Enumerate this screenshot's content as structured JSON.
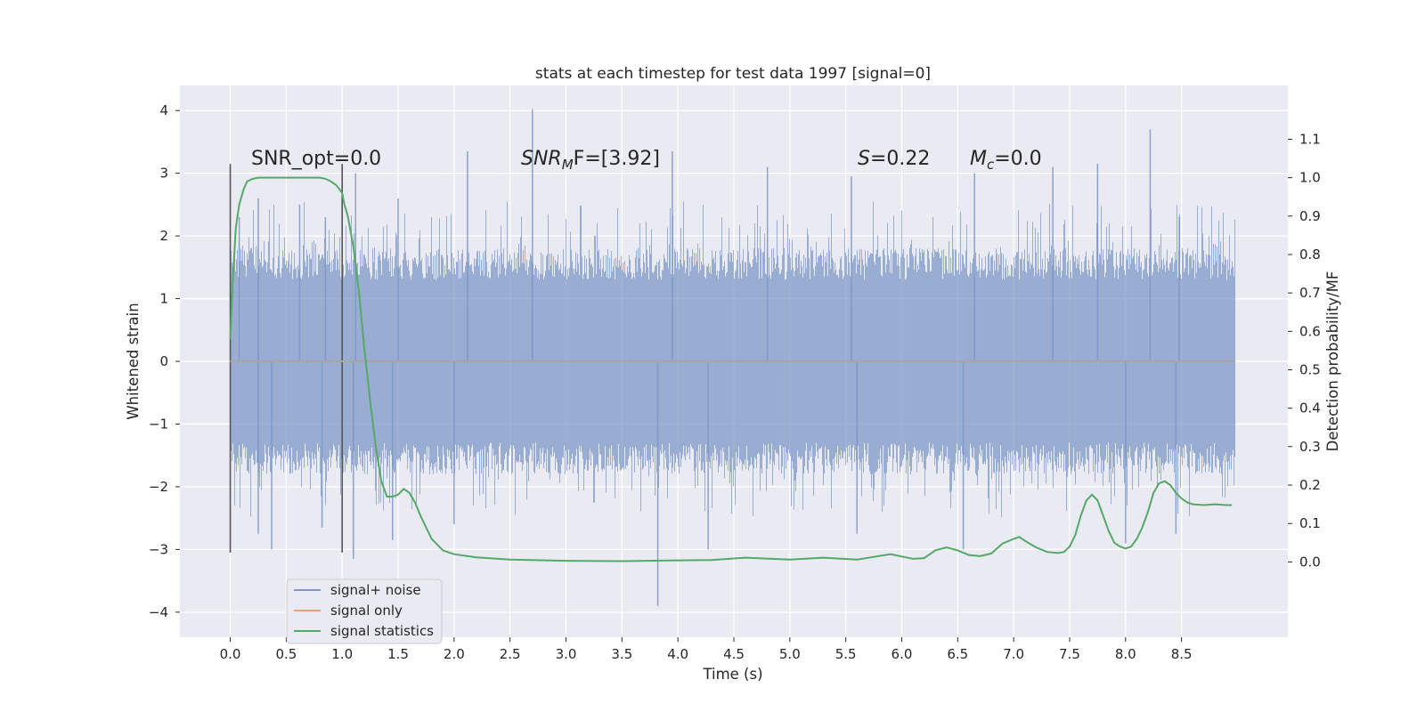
{
  "chart_data": {
    "type": "line",
    "title": "stats at each timestep for test data 1997 [signal=0]",
    "xlabel": "Time (s)",
    "ylabel_left": "Whitened strain",
    "ylabel_right": "Detection probability/MF",
    "xlim": [
      -0.45,
      9.45
    ],
    "ylim_left": [
      -4.4,
      4.4
    ],
    "ylim_right": [
      -0.196,
      1.24
    ],
    "x_ticks": [
      "0.0",
      "0.5",
      "1.0",
      "1.5",
      "2.0",
      "2.5",
      "3.0",
      "3.5",
      "4.0",
      "4.5",
      "5.0",
      "5.5",
      "6.0",
      "6.5",
      "7.0",
      "7.5",
      "8.0",
      "8.5"
    ],
    "y_left_ticks": [
      "-4",
      "-3",
      "-2",
      "-1",
      "0",
      "1",
      "2",
      "3",
      "4"
    ],
    "y_right_ticks": [
      "0.0",
      "0.1",
      "0.2",
      "0.3",
      "0.4",
      "0.5",
      "0.6",
      "0.7",
      "0.8",
      "0.9",
      "1.0",
      "1.1"
    ],
    "grid": true,
    "legend_position": "lower-left",
    "colors": {
      "background": "#eaeaf2",
      "grid": "#ffffff",
      "noise": "#7a95c6",
      "signal_only": "#dd8452",
      "statistics": "#55a868",
      "markers": "#555555"
    },
    "annotations": {
      "snr_opt": "SNR_opt=0.0",
      "snr_mf_base": "SNR",
      "snr_mf_sub": "M",
      "snr_mf_rest": "F=[3.92]",
      "s_var": "S",
      "s_val": "=0.22",
      "mc_var": "M",
      "mc_sub": "c",
      "mc_val": "=0.0"
    },
    "vertical_markers": [
      {
        "x": 0.0,
        "y_range": [
          -3.05,
          3.15
        ]
      },
      {
        "x": 1.0,
        "y_range": [
          -3.05,
          3.15
        ]
      }
    ],
    "series": [
      {
        "name": "signal+ noise",
        "axis": "left",
        "style": "noise",
        "x_range": [
          0.0,
          8.98
        ],
        "envelope": [
          1.8,
          -1.8
        ],
        "peaks": [
          {
            "x": 0.08,
            "y": 2.3
          },
          {
            "x": 0.25,
            "y": 2.6
          },
          {
            "x": 0.62,
            "y": 2.5
          },
          {
            "x": 0.85,
            "y": 2.3
          },
          {
            "x": 1.12,
            "y": 3.0
          },
          {
            "x": 1.5,
            "y": 2.6
          },
          {
            "x": 2.12,
            "y": 3.35
          },
          {
            "x": 2.7,
            "y": 4.02
          },
          {
            "x": 3.95,
            "y": 3.35
          },
          {
            "x": 4.8,
            "y": 3.1
          },
          {
            "x": 5.55,
            "y": 2.95
          },
          {
            "x": 6.65,
            "y": 3.0
          },
          {
            "x": 7.35,
            "y": 3.1
          },
          {
            "x": 7.75,
            "y": 3.15
          },
          {
            "x": 8.22,
            "y": 3.7
          },
          {
            "x": 8.48,
            "y": 2.3
          }
        ],
        "troughs": [
          {
            "x": 0.25,
            "y": -2.75
          },
          {
            "x": 0.37,
            "y": -3.0
          },
          {
            "x": 0.82,
            "y": -2.65
          },
          {
            "x": 1.1,
            "y": -3.15
          },
          {
            "x": 1.45,
            "y": -2.85
          },
          {
            "x": 2.0,
            "y": -2.6
          },
          {
            "x": 3.82,
            "y": -3.9
          },
          {
            "x": 4.27,
            "y": -3.0
          },
          {
            "x": 5.6,
            "y": -2.75
          },
          {
            "x": 6.55,
            "y": -3.0
          },
          {
            "x": 8.0,
            "y": -2.9
          },
          {
            "x": 8.45,
            "y": -2.75
          }
        ]
      },
      {
        "name": "signal only",
        "axis": "left",
        "x": [
          0.0,
          8.98
        ],
        "y": [
          0.0,
          0.0
        ]
      },
      {
        "name": "signal statistics",
        "axis": "right",
        "x": [
          0.0,
          0.02,
          0.05,
          0.08,
          0.12,
          0.15,
          0.2,
          0.25,
          0.3,
          0.4,
          0.5,
          0.6,
          0.7,
          0.8,
          0.85,
          0.9,
          0.95,
          1.0,
          1.02,
          1.05,
          1.1,
          1.15,
          1.2,
          1.25,
          1.3,
          1.35,
          1.4,
          1.45,
          1.5,
          1.55,
          1.6,
          1.65,
          1.7,
          1.75,
          1.8,
          1.85,
          1.9,
          2.0,
          2.2,
          2.5,
          3.0,
          3.5,
          4.0,
          4.3,
          4.6,
          5.0,
          5.3,
          5.6,
          5.9,
          6.1,
          6.2,
          6.3,
          6.4,
          6.5,
          6.6,
          6.7,
          6.8,
          6.9,
          7.0,
          7.05,
          7.1,
          7.2,
          7.3,
          7.4,
          7.45,
          7.5,
          7.55,
          7.6,
          7.65,
          7.7,
          7.75,
          7.8,
          7.85,
          7.9,
          7.95,
          8.0,
          8.05,
          8.1,
          8.15,
          8.2,
          8.25,
          8.3,
          8.35,
          8.4,
          8.45,
          8.5,
          8.55,
          8.6,
          8.7,
          8.8,
          8.9,
          8.95
        ],
        "y": [
          0.58,
          0.72,
          0.87,
          0.93,
          0.97,
          0.99,
          0.997,
          1.0,
          1.0,
          1.0,
          1.0,
          1.0,
          1.0,
          1.0,
          0.997,
          0.99,
          0.98,
          0.96,
          0.93,
          0.9,
          0.82,
          0.7,
          0.55,
          0.42,
          0.3,
          0.21,
          0.17,
          0.17,
          0.175,
          0.19,
          0.18,
          0.155,
          0.12,
          0.09,
          0.06,
          0.045,
          0.03,
          0.02,
          0.012,
          0.006,
          0.003,
          0.002,
          0.004,
          0.005,
          0.011,
          0.006,
          0.011,
          0.006,
          0.02,
          0.008,
          0.01,
          0.03,
          0.038,
          0.03,
          0.018,
          0.015,
          0.022,
          0.048,
          0.06,
          0.065,
          0.055,
          0.038,
          0.026,
          0.023,
          0.026,
          0.04,
          0.07,
          0.12,
          0.16,
          0.175,
          0.16,
          0.12,
          0.08,
          0.05,
          0.04,
          0.035,
          0.04,
          0.06,
          0.09,
          0.13,
          0.18,
          0.205,
          0.21,
          0.2,
          0.18,
          0.165,
          0.155,
          0.15,
          0.148,
          0.15,
          0.148,
          0.148
        ]
      }
    ]
  }
}
